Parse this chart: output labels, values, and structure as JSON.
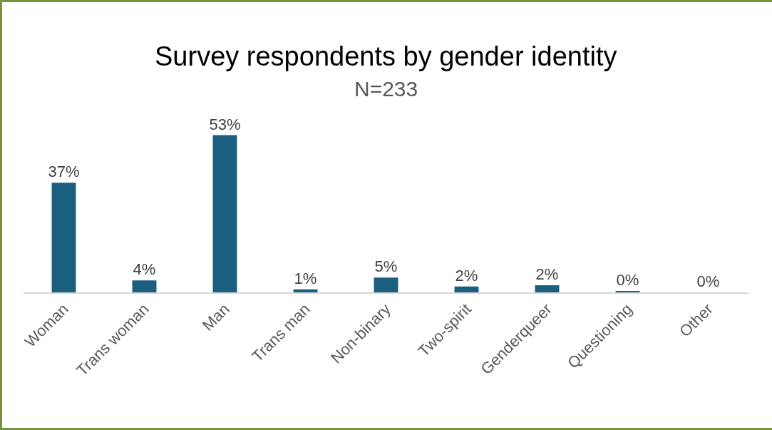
{
  "chart_data": {
    "type": "bar",
    "title": "Survey respondents by gender identity",
    "subtitle": "N=233",
    "categories": [
      "Woman",
      "Trans woman",
      "Man",
      "Trans man",
      "Non-binary",
      "Two-spirit",
      "Genderqueer",
      "Questioning",
      "Other"
    ],
    "values": [
      37,
      4,
      53,
      1,
      5,
      2,
      2.4,
      0.4,
      0
    ],
    "value_labels": [
      "37%",
      "4%",
      "53%",
      "1%",
      "5%",
      "2%",
      "2%",
      "0%",
      "0%"
    ],
    "color": "#1a5e80",
    "grid": false,
    "legend": false
  }
}
